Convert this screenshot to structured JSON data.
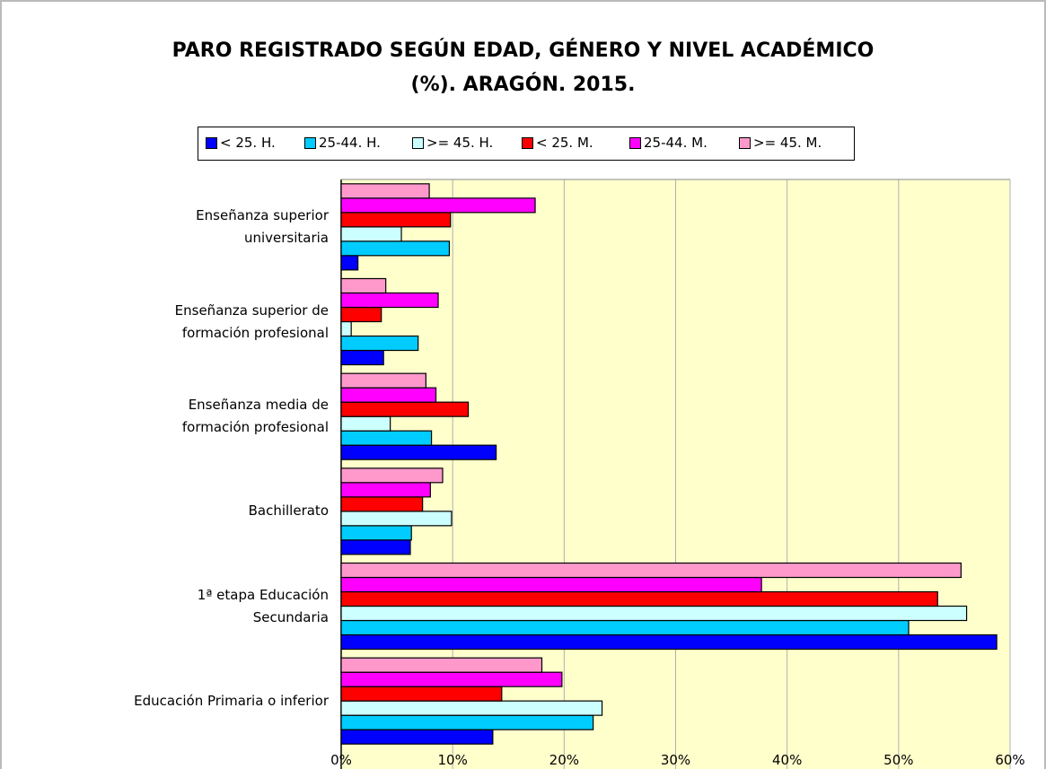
{
  "chart_data": {
    "type": "bar",
    "orientation": "horizontal",
    "title": "PARO REGISTRADO SEGÚN EDAD, GÉNERO Y NIVEL ACADÉMICO\n(%). ARAGÓN. 2015.",
    "categories": [
      "Enseñanza superior\nuniversitaria",
      "Enseñanza superior de\nformación profesional",
      "Enseñanza media de\nformación profesional",
      "Bachillerato",
      "1ª etapa Educación\nSecundaria",
      "Educación Primaria o inferior"
    ],
    "series": [
      {
        "name": "< 25. H.",
        "color": "#0000ff",
        "values": [
          1.5,
          3.8,
          13.9,
          6.2,
          58.8,
          13.6
        ]
      },
      {
        "name": "25-44. H.",
        "color": "#00ccff",
        "values": [
          9.7,
          6.9,
          8.1,
          6.3,
          50.9,
          22.6
        ]
      },
      {
        "name": ">= 45. H.",
        "color": "#ccffff",
        "values": [
          5.4,
          0.9,
          4.4,
          9.9,
          56.1,
          23.4
        ]
      },
      {
        "name": "< 25. M.",
        "color": "#ff0000",
        "values": [
          9.8,
          3.6,
          11.4,
          7.3,
          53.5,
          14.4
        ]
      },
      {
        "name": "25-44. M.",
        "color": "#ff00ff",
        "values": [
          17.4,
          8.7,
          8.5,
          8.0,
          37.7,
          19.8
        ]
      },
      {
        "name": ">= 45. M.",
        "color": "#ff99cc",
        "values": [
          7.9,
          4.0,
          7.6,
          9.1,
          55.6,
          18.0
        ]
      }
    ],
    "xlim": [
      0,
      60
    ],
    "xticks": [
      {
        "value": 0,
        "label": "0%"
      },
      {
        "value": 10,
        "label": "10%"
      },
      {
        "value": 20,
        "label": "20%"
      },
      {
        "value": 30,
        "label": "30%"
      },
      {
        "value": 40,
        "label": "40%"
      },
      {
        "value": 50,
        "label": "50%"
      },
      {
        "value": 60,
        "label": "60%"
      }
    ],
    "grid": true,
    "legend": "top"
  }
}
